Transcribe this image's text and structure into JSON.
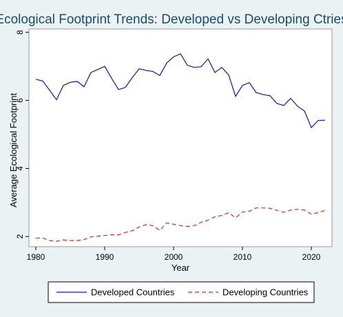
{
  "chart_data": {
    "type": "line",
    "title": "Ecological Footprint Trends: Developed vs Developing Ctries",
    "xlabel": "Year",
    "ylabel": "Average Ecological Footprint",
    "xlim": [
      1979,
      2023
    ],
    "ylim": [
      1.7,
      8.1
    ],
    "xticks": [
      1980,
      1990,
      2000,
      2010,
      2020
    ],
    "yticks": [
      2,
      4,
      6,
      8
    ],
    "grid": false,
    "legend_position": "bottom",
    "x": [
      1980,
      1981,
      1982,
      1983,
      1984,
      1985,
      1986,
      1987,
      1988,
      1989,
      1990,
      1991,
      1992,
      1993,
      1994,
      1995,
      1996,
      1997,
      1998,
      1999,
      2000,
      2001,
      2002,
      2003,
      2004,
      2005,
      2006,
      2007,
      2008,
      2009,
      2010,
      2011,
      2012,
      2013,
      2014,
      2015,
      2016,
      2017,
      2018,
      2019,
      2020,
      2021,
      2022
    ],
    "series": [
      {
        "name": "Developed Countries",
        "color": "#1010cc",
        "dash": "solid",
        "values": [
          6.62,
          6.57,
          6.3,
          6.02,
          6.44,
          6.53,
          6.56,
          6.4,
          6.82,
          6.91,
          7.0,
          6.65,
          6.32,
          6.38,
          6.67,
          6.93,
          6.88,
          6.85,
          6.73,
          7.1,
          7.28,
          7.37,
          7.03,
          6.97,
          6.99,
          7.22,
          6.82,
          6.97,
          6.75,
          6.12,
          6.44,
          6.52,
          6.23,
          6.17,
          6.14,
          5.91,
          5.85,
          6.06,
          5.83,
          5.69,
          5.2,
          5.41,
          5.42
        ]
      },
      {
        "name": "Developing Countries",
        "color": "#e8241c",
        "dash": "dashed",
        "values": [
          1.95,
          1.96,
          1.88,
          1.86,
          1.9,
          1.88,
          1.88,
          1.91,
          1.99,
          2.01,
          2.03,
          2.05,
          2.05,
          2.12,
          2.17,
          2.28,
          2.35,
          2.32,
          2.18,
          2.4,
          2.36,
          2.32,
          2.3,
          2.32,
          2.42,
          2.48,
          2.58,
          2.62,
          2.7,
          2.55,
          2.72,
          2.74,
          2.84,
          2.84,
          2.83,
          2.77,
          2.71,
          2.78,
          2.8,
          2.78,
          2.66,
          2.7,
          2.77
        ]
      }
    ]
  }
}
